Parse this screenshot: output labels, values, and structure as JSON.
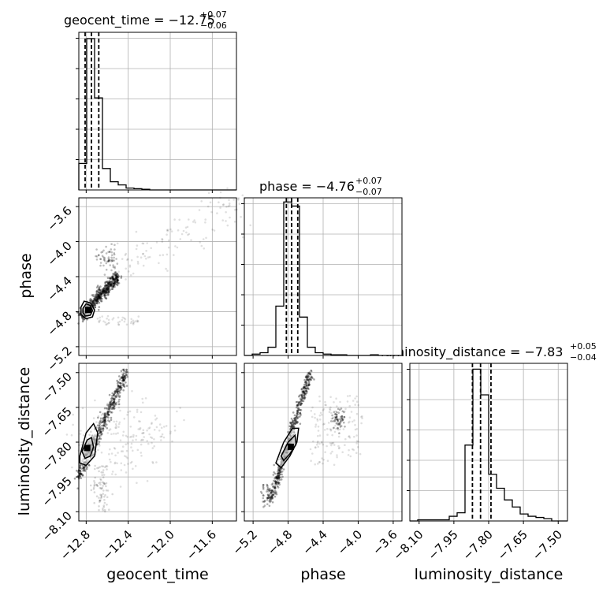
{
  "chart_data": {
    "type": "corner",
    "parameters": [
      {
        "key": "geocent_time",
        "label": "geocent_time",
        "title_prefix": "geocent_time = ",
        "median": "−12.75",
        "err_plus": "+0.07",
        "err_minus": "−0.06",
        "range": [
          -12.87,
          -11.37
        ],
        "ticks": [
          -12.8,
          -12.4,
          -12.0,
          -11.6
        ],
        "tick_labels": [
          "−12.8",
          "−12.4",
          "−12.0",
          "−11.6"
        ],
        "quantiles": [
          -12.81,
          -12.75,
          -12.68
        ],
        "hist_edges": [
          -12.87,
          -12.795,
          -12.72,
          -12.645,
          -12.57,
          -12.495,
          -12.42,
          -12.345,
          -12.27,
          -12.195,
          -12.12,
          -12.045,
          -11.97,
          -11.895,
          -11.82,
          -11.745,
          -11.67,
          -11.595,
          -11.52,
          -11.445,
          -11.37
        ],
        "hist_counts": [
          42,
          240,
          146,
          34,
          13,
          8,
          3,
          2,
          1,
          0,
          0,
          0,
          0,
          0,
          0,
          0,
          0,
          0,
          0,
          0
        ]
      },
      {
        "key": "phase",
        "label": "phase",
        "title_prefix": "phase = ",
        "median": "−4.76",
        "err_plus": "+0.07",
        "err_minus": "−0.07",
        "range": [
          -5.3,
          -3.5
        ],
        "ticks": [
          -5.2,
          -4.8,
          -4.4,
          -4.0,
          -3.6
        ],
        "tick_labels": [
          "−5.2",
          "−4.8",
          "−4.4",
          "−4.0",
          "−3.6"
        ],
        "quantiles": [
          -4.82,
          -4.76,
          -4.69
        ],
        "hist_edges": [
          -5.3,
          -5.21,
          -5.12,
          -5.03,
          -4.94,
          -4.85,
          -4.76,
          -4.67,
          -4.58,
          -4.49,
          -4.4,
          -4.31,
          -4.22,
          -4.13,
          -4.04,
          -3.95,
          -3.86,
          -3.77,
          -3.68,
          -3.59,
          -3.5
        ],
        "hist_counts": [
          0,
          2,
          4,
          12,
          72,
          224,
          218,
          56,
          12,
          4,
          2,
          1,
          1,
          0,
          0,
          0,
          1,
          0,
          0,
          0
        ]
      },
      {
        "key": "luminosity_distance",
        "label": "luminosity_distance",
        "title_prefix": "luminosity_distance = ",
        "median": "−7.83",
        "err_plus": "+0.05",
        "err_minus": "−0.04",
        "range": [
          -8.14,
          -7.46
        ],
        "ticks": [
          -8.1,
          -7.95,
          -7.8,
          -7.65,
          -7.5
        ],
        "tick_labels": [
          "−8.10",
          "−7.95",
          "−7.80",
          "−7.65",
          "−7.50"
        ],
        "quantiles": [
          -7.87,
          -7.835,
          -7.79
        ],
        "hist_edges": [
          -8.14,
          -8.106,
          -8.072,
          -8.038,
          -8.004,
          -7.97,
          -7.936,
          -7.902,
          -7.868,
          -7.834,
          -7.8,
          -7.766,
          -7.732,
          -7.698,
          -7.664,
          -7.63,
          -7.596,
          -7.562,
          -7.528,
          -7.494,
          -7.46
        ],
        "hist_counts": [
          0,
          1,
          1,
          1,
          1,
          4,
          7,
          65,
          130,
          108,
          40,
          28,
          18,
          12,
          6,
          4,
          3,
          2,
          0,
          0
        ]
      }
    ],
    "pairs": [
      {
        "x": "geocent_time",
        "y": "phase",
        "peak": [
          -12.78,
          -4.78
        ],
        "contours": [
          [
            [
              -12.85,
              -4.75
            ],
            [
              -12.82,
              -4.68
            ],
            [
              -12.76,
              -4.7
            ],
            [
              -12.72,
              -4.78
            ],
            [
              -12.74,
              -4.86
            ],
            [
              -12.8,
              -4.88
            ],
            [
              -12.85,
              -4.83
            ]
          ],
          [
            [
              -12.83,
              -4.76
            ],
            [
              -12.8,
              -4.71
            ],
            [
              -12.76,
              -4.73
            ],
            [
              -12.74,
              -4.79
            ],
            [
              -12.76,
              -4.84
            ],
            [
              -12.81,
              -4.85
            ],
            [
              -12.83,
              -4.81
            ]
          ]
        ]
      },
      {
        "x": "geocent_time",
        "y": "luminosity_distance",
        "peak": [
          -12.79,
          -7.825
        ],
        "contours": [
          [
            [
              -12.86,
              -7.86
            ],
            [
              -12.8,
              -7.76
            ],
            [
              -12.73,
              -7.72
            ],
            [
              -12.69,
              -7.76
            ],
            [
              -12.72,
              -7.86
            ],
            [
              -12.8,
              -7.9
            ],
            [
              -12.86,
              -7.89
            ]
          ],
          [
            [
              -12.84,
              -7.84
            ],
            [
              -12.79,
              -7.79
            ],
            [
              -12.75,
              -7.78
            ],
            [
              -12.73,
              -7.82
            ],
            [
              -12.76,
              -7.86
            ],
            [
              -12.81,
              -7.87
            ]
          ]
        ]
      },
      {
        "x": "phase",
        "y": "luminosity_distance",
        "peak": [
          -4.77,
          -7.82
        ],
        "contours": [
          [
            [
              -4.94,
              -7.89
            ],
            [
              -4.85,
              -7.8
            ],
            [
              -4.75,
              -7.74
            ],
            [
              -4.68,
              -7.74
            ],
            [
              -4.7,
              -7.8
            ],
            [
              -4.78,
              -7.86
            ],
            [
              -4.88,
              -7.91
            ]
          ],
          [
            [
              -4.88,
              -7.86
            ],
            [
              -4.8,
              -7.8
            ],
            [
              -4.72,
              -7.77
            ],
            [
              -4.71,
              -7.81
            ],
            [
              -4.78,
              -7.85
            ],
            [
              -4.85,
              -7.88
            ]
          ]
        ]
      }
    ],
    "grid": true
  }
}
